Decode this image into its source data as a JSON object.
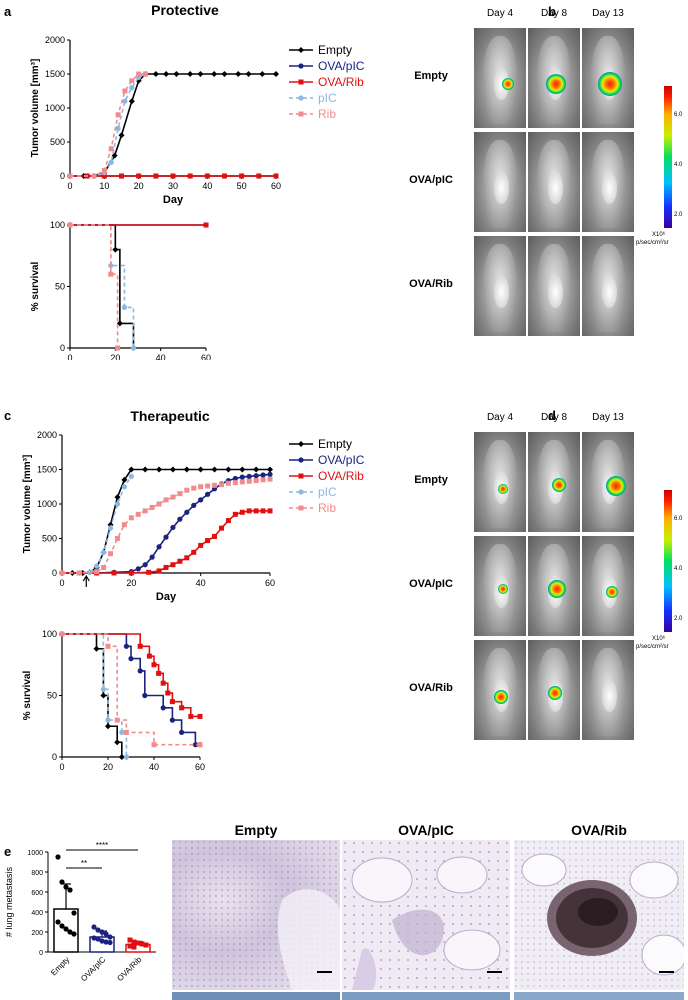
{
  "panels": {
    "a": {
      "letter": "a",
      "title": "Protective"
    },
    "b": {
      "letter": "b",
      "days": [
        "Day 4",
        "Day 8",
        "Day 13"
      ],
      "rows": [
        "Empty",
        "OVA/pIC",
        "OVA/Rib"
      ],
      "colorbar": {
        "ticks": [
          "6.0",
          "4.0",
          "2.0"
        ],
        "unit_line1": "X10⁶",
        "unit_line2": "p/sec/cm²/sr"
      }
    },
    "c": {
      "letter": "c",
      "title": "Therapeutic"
    },
    "d": {
      "letter": "d",
      "days": [
        "Day 4",
        "Day 8",
        "Day 13"
      ],
      "rows": [
        "Empty",
        "OVA/pIC",
        "OVA/Rib"
      ],
      "colorbar": {
        "ticks": [
          "6.0",
          "4.0",
          "2.0"
        ],
        "unit_line1": "X10⁶",
        "unit_line2": "p/sec/cm²/sr"
      }
    },
    "e": {
      "letter": "e",
      "histology_titles": [
        "Empty",
        "OVA/pIC",
        "OVA/Rib"
      ]
    }
  },
  "legend": [
    {
      "name": "Empty",
      "color": "#000000",
      "marker": "diamond",
      "dash": false
    },
    {
      "name": "OVA/pIC",
      "color": "#1a237e",
      "marker": "circle",
      "dash": false
    },
    {
      "name": "OVA/Rib",
      "color": "#e01010",
      "marker": "square",
      "dash": false
    },
    {
      "name": "pIC",
      "color": "#8ab8e6",
      "marker": "circle",
      "dash": true
    },
    {
      "name": "Rib",
      "color": "#f08c8c",
      "marker": "square",
      "dash": true
    }
  ],
  "chart_data": [
    {
      "id": "a-tumor",
      "type": "line",
      "title": "Protective",
      "xlabel": "Day",
      "ylabel": "Tumor volume [mm³]",
      "xlim": [
        0,
        60
      ],
      "ylim": [
        0,
        2000
      ],
      "xticks": [
        0,
        10,
        20,
        30,
        40,
        50,
        60
      ],
      "yticks": [
        0,
        500,
        1000,
        1500,
        2000
      ],
      "series": [
        {
          "name": "Empty",
          "x": [
            0,
            4,
            7,
            10,
            13,
            15,
            18,
            20,
            22,
            25,
            28,
            31,
            35,
            38,
            42,
            45,
            49,
            52,
            56,
            60
          ],
          "y": [
            0,
            0,
            0,
            50,
            300,
            600,
            1100,
            1400,
            1500,
            1500,
            1500,
            1500,
            1500,
            1500,
            1500,
            1500,
            1500,
            1500,
            1500,
            1500
          ]
        },
        {
          "name": "OVA/pIC",
          "x": [
            0,
            5,
            10,
            15,
            20,
            25,
            30,
            35,
            40,
            45,
            50,
            55,
            60
          ],
          "y": [
            0,
            0,
            0,
            0,
            0,
            0,
            0,
            0,
            0,
            0,
            0,
            0,
            0
          ]
        },
        {
          "name": "OVA/Rib",
          "x": [
            0,
            5,
            10,
            15,
            20,
            25,
            30,
            35,
            40,
            45,
            50,
            55,
            60
          ],
          "y": [
            0,
            0,
            0,
            0,
            0,
            0,
            0,
            0,
            0,
            0,
            0,
            0,
            0
          ]
        },
        {
          "name": "pIC",
          "x": [
            0,
            7,
            10,
            12,
            14,
            16,
            18,
            20,
            22
          ],
          "y": [
            0,
            0,
            50,
            200,
            700,
            1100,
            1300,
            1450,
            1500
          ]
        },
        {
          "name": "Rib",
          "x": [
            0,
            7,
            10,
            12,
            14,
            16,
            18,
            20,
            22
          ],
          "y": [
            0,
            0,
            80,
            400,
            900,
            1250,
            1400,
            1500,
            1500
          ]
        }
      ]
    },
    {
      "id": "a-survival",
      "type": "line",
      "step": true,
      "xlabel": "Day",
      "ylabel": "% survival",
      "xlim": [
        0,
        60
      ],
      "ylim": [
        0,
        100
      ],
      "xticks": [
        0,
        20,
        40,
        60
      ],
      "yticks": [
        0,
        50,
        100
      ],
      "series": [
        {
          "name": "Empty",
          "x": [
            0,
            20,
            22,
            25,
            28
          ],
          "y": [
            100,
            80,
            20,
            20,
            0
          ]
        },
        {
          "name": "OVA/pIC",
          "x": [
            0,
            60
          ],
          "y": [
            100,
            100
          ]
        },
        {
          "name": "OVA/Rib",
          "x": [
            0,
            60
          ],
          "y": [
            100,
            100
          ]
        },
        {
          "name": "pIC",
          "x": [
            0,
            18,
            24,
            28
          ],
          "y": [
            100,
            67,
            33,
            0
          ]
        },
        {
          "name": "Rib",
          "x": [
            0,
            18,
            21
          ],
          "y": [
            100,
            60,
            0
          ]
        }
      ]
    },
    {
      "id": "c-tumor",
      "type": "line",
      "title": "Therapeutic",
      "xlabel": "Day",
      "ylabel": "Tumor volume [mm³]",
      "xlim": [
        0,
        60
      ],
      "ylim": [
        0,
        2000
      ],
      "xticks": [
        0,
        20,
        40,
        60
      ],
      "yticks": [
        0,
        500,
        1000,
        1500,
        2000
      ],
      "arrow_day": 7,
      "series": [
        {
          "name": "Empty",
          "x": [
            0,
            3,
            6,
            8,
            10,
            12,
            14,
            16,
            18,
            20,
            24,
            28,
            32,
            36,
            40,
            44,
            48,
            52,
            56,
            60
          ],
          "y": [
            0,
            0,
            0,
            10,
            80,
            300,
            700,
            1100,
            1350,
            1500,
            1500,
            1500,
            1500,
            1500,
            1500,
            1500,
            1500,
            1500,
            1500,
            1500
          ]
        },
        {
          "name": "OVA/pIC",
          "x": [
            0,
            5,
            10,
            15,
            20,
            22,
            24,
            26,
            28,
            30,
            32,
            34,
            36,
            38,
            40,
            42,
            44,
            46,
            48,
            50,
            52,
            54,
            56,
            58,
            60
          ],
          "y": [
            0,
            0,
            0,
            10,
            20,
            60,
            120,
            230,
            380,
            520,
            660,
            780,
            880,
            980,
            1060,
            1140,
            1220,
            1290,
            1340,
            1370,
            1390,
            1400,
            1410,
            1420,
            1430
          ]
        },
        {
          "name": "OVA/Rib",
          "x": [
            0,
            5,
            10,
            15,
            20,
            25,
            28,
            30,
            32,
            34,
            36,
            38,
            40,
            42,
            44,
            46,
            48,
            50,
            52,
            54,
            56,
            58,
            60
          ],
          "y": [
            0,
            0,
            0,
            0,
            0,
            10,
            30,
            80,
            120,
            170,
            220,
            300,
            400,
            470,
            530,
            650,
            760,
            850,
            880,
            900,
            900,
            900,
            900
          ]
        },
        {
          "name": "pIC",
          "x": [
            0,
            5,
            8,
            10,
            12,
            14,
            16,
            18,
            20
          ],
          "y": [
            0,
            0,
            10,
            100,
            300,
            650,
            1000,
            1250,
            1400
          ]
        },
        {
          "name": "Rib",
          "x": [
            0,
            5,
            10,
            12,
            14,
            16,
            18,
            20,
            22,
            24,
            26,
            28,
            30,
            32,
            34,
            36,
            38,
            40,
            42,
            44,
            46,
            48,
            50,
            52,
            54,
            56,
            58,
            60
          ],
          "y": [
            0,
            0,
            20,
            80,
            280,
            500,
            700,
            800,
            850,
            900,
            950,
            1000,
            1060,
            1100,
            1150,
            1200,
            1230,
            1250,
            1260,
            1270,
            1280,
            1300,
            1310,
            1320,
            1330,
            1340,
            1350,
            1360
          ]
        }
      ]
    },
    {
      "id": "c-survival",
      "type": "line",
      "step": true,
      "xlabel": "Day",
      "ylabel": "% survival",
      "xlim": [
        0,
        60
      ],
      "ylim": [
        0,
        100
      ],
      "xticks": [
        0,
        20,
        40,
        60
      ],
      "yticks": [
        0,
        50,
        100
      ],
      "series": [
        {
          "name": "Empty",
          "x": [
            0,
            15,
            18,
            20,
            24,
            26,
            28
          ],
          "y": [
            100,
            88,
            50,
            25,
            12,
            0,
            0
          ]
        },
        {
          "name": "OVA/pIC",
          "x": [
            0,
            28,
            30,
            34,
            36,
            40,
            44,
            48,
            52,
            58,
            60
          ],
          "y": [
            100,
            90,
            80,
            70,
            50,
            50,
            40,
            30,
            20,
            10,
            10
          ]
        },
        {
          "name": "OVA/Rib",
          "x": [
            0,
            34,
            38,
            40,
            42,
            44,
            46,
            48,
            52,
            56,
            60
          ],
          "y": [
            100,
            90,
            82,
            75,
            68,
            60,
            52,
            45,
            40,
            33,
            33
          ]
        },
        {
          "name": "pIC",
          "x": [
            0,
            18,
            20,
            26,
            28
          ],
          "y": [
            100,
            55,
            30,
            20,
            0
          ]
        },
        {
          "name": "Rib",
          "x": [
            0,
            20,
            24,
            28,
            40,
            60
          ],
          "y": [
            100,
            90,
            30,
            20,
            10,
            10
          ]
        }
      ]
    },
    {
      "id": "e-metastasis",
      "type": "bar",
      "xlabel": "",
      "ylabel": "# lung metastasis",
      "categories": [
        "Empty",
        "OVA/pIC",
        "OVA/Rib"
      ],
      "values": [
        430,
        150,
        75
      ],
      "errors": [
        250,
        60,
        30
      ],
      "colors": [
        "#000000",
        "#1a237e",
        "#e01010"
      ],
      "ylim": [
        0,
        1000
      ],
      "yticks": [
        0,
        200,
        400,
        600,
        800,
        1000
      ],
      "points": [
        [
          950,
          700,
          650,
          620,
          390,
          300,
          260,
          230,
          200,
          180
        ],
        [
          250,
          220,
          200,
          180,
          150,
          140,
          130,
          110,
          100,
          95
        ],
        [
          120,
          100,
          90,
          80,
          70,
          60,
          50
        ]
      ],
      "significance": [
        {
          "label": "****",
          "from": 0,
          "to": 2
        },
        {
          "label": "**",
          "from": 0,
          "to": 1
        }
      ]
    }
  ]
}
